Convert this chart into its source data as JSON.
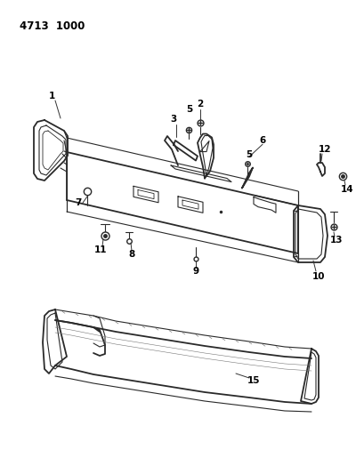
{
  "title": "4713  1000",
  "bg_color": "#ffffff",
  "line_color": "#2a2a2a",
  "label_color": "#000000",
  "title_fontsize": 8.5,
  "label_fontsize": 7.5
}
